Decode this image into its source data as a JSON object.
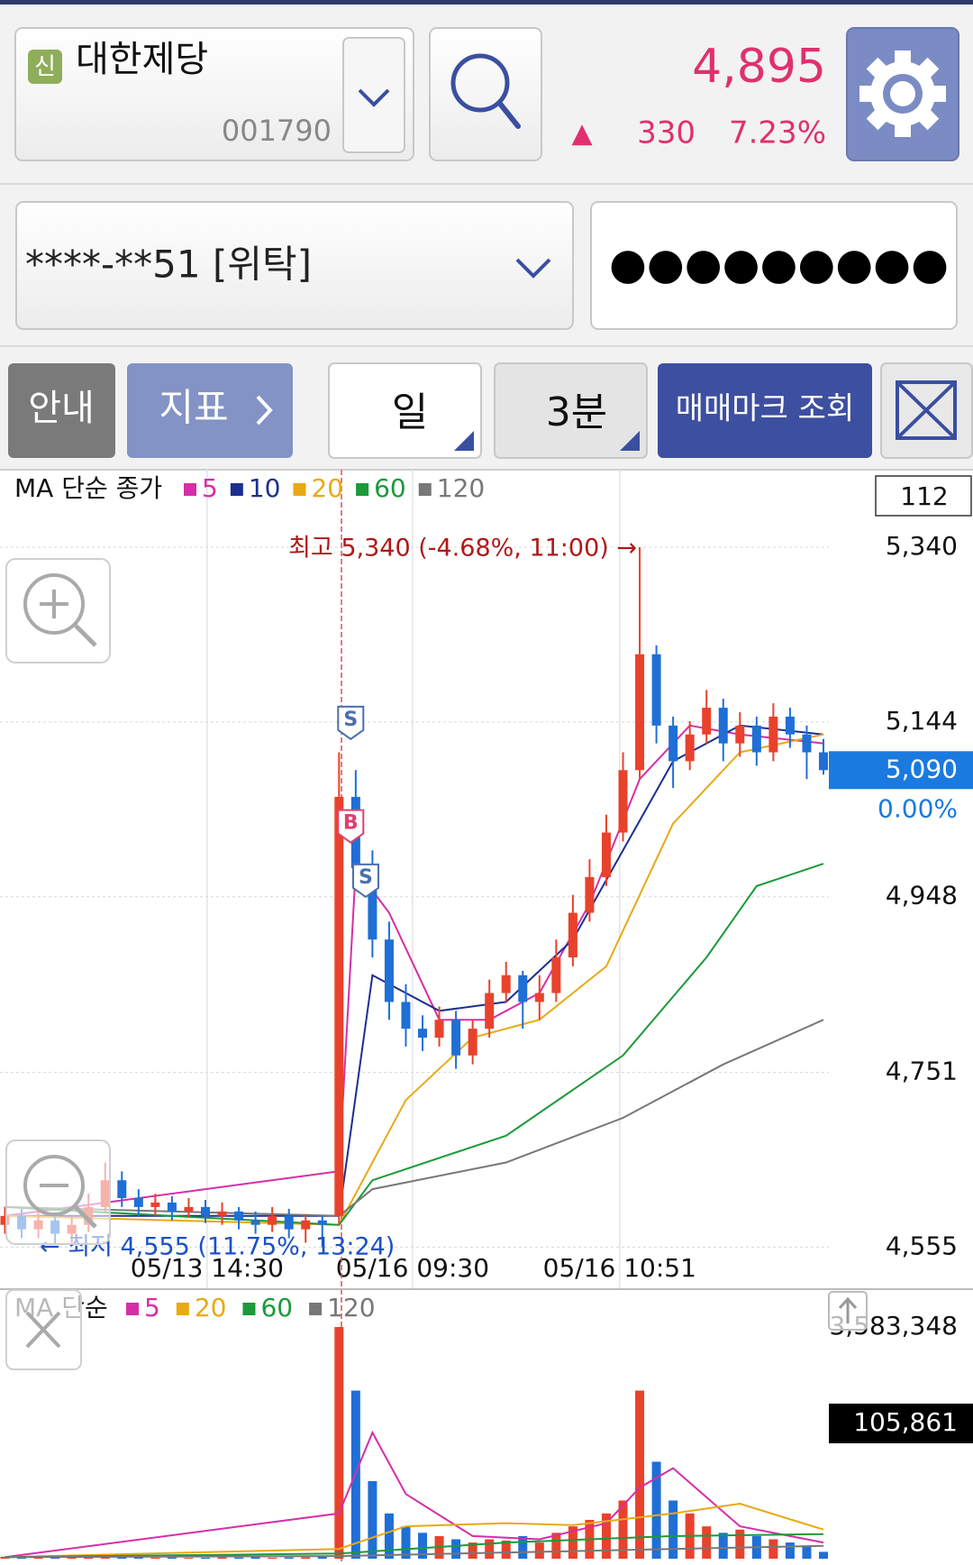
{
  "header": {
    "badge": "신",
    "name": "대한제당",
    "code": "001790",
    "price": "4,895",
    "arrow": "▲",
    "change": "330",
    "change_rate": "7.23%"
  },
  "account": {
    "number": "****-**51 [위탁]",
    "password": "●●●●●●●●●"
  },
  "toolbar": {
    "info": "안내",
    "indicator": "지표",
    "period": "일",
    "interval": "3분",
    "trade_mark": "매매마크 조회"
  },
  "chart_data": [
    {
      "type": "candlestick",
      "legend_title": "MA 단순 종가",
      "count": "112",
      "categories": [
        null,
        null,
        null,
        null,
        null,
        null,
        null,
        null,
        null,
        null,
        null,
        null,
        null,
        null,
        null,
        null,
        null,
        null,
        null,
        null,
        null,
        null,
        null,
        null,
        null,
        null,
        null,
        null,
        null,
        null,
        null,
        null,
        null,
        null,
        null,
        null,
        null,
        null,
        null,
        null,
        null,
        null,
        null,
        null,
        null,
        null,
        null,
        null,
        null,
        null
      ],
      "open": [
        4580,
        4590,
        4575,
        4585,
        4570,
        4580,
        4600,
        4630,
        4610,
        4600,
        4605,
        4595,
        4600,
        4590,
        4595,
        4585,
        4580,
        4590,
        4575,
        4585,
        4590,
        5060,
        4980,
        4900,
        4830,
        4800,
        4790,
        4810,
        4770,
        4800,
        4840,
        4860,
        4830,
        4840,
        4880,
        4930,
        4970,
        5020,
        5090,
        5220,
        5140,
        5100,
        5130,
        5160,
        5120,
        5140,
        5110,
        5150,
        5130,
        5110
      ],
      "high": [
        4600,
        4598,
        4595,
        4592,
        4590,
        4615,
        4650,
        4640,
        4620,
        4615,
        4612,
        4610,
        4608,
        4605,
        4600,
        4595,
        4600,
        4598,
        4592,
        4590,
        5110,
        5090,
        5000,
        4920,
        4850,
        4815,
        4825,
        4820,
        4810,
        4855,
        4875,
        4865,
        4860,
        4900,
        4950,
        4990,
        5040,
        5110,
        5340,
        5230,
        5150,
        5145,
        5180,
        5170,
        5155,
        5150,
        5165,
        5160,
        5140,
        5125
      ],
      "low": [
        4570,
        4565,
        4565,
        4558,
        4560,
        4572,
        4595,
        4600,
        4590,
        4590,
        4585,
        4588,
        4582,
        4580,
        4575,
        4570,
        4572,
        4565,
        4560,
        4555,
        4580,
        4960,
        4880,
        4810,
        4780,
        4775,
        4780,
        4755,
        4760,
        4790,
        4830,
        4800,
        4810,
        4830,
        4870,
        4920,
        4960,
        5010,
        5080,
        5120,
        5070,
        5090,
        5120,
        5100,
        5105,
        5095,
        5100,
        5115,
        5080,
        5085
      ],
      "close": [
        4590,
        4575,
        4585,
        4570,
        4580,
        4600,
        4630,
        4610,
        4600,
        4605,
        4595,
        4600,
        4590,
        4595,
        4585,
        4580,
        4590,
        4575,
        4585,
        4580,
        5060,
        4980,
        4900,
        4830,
        4800,
        4790,
        4810,
        4770,
        4800,
        4840,
        4860,
        4830,
        4840,
        4880,
        4930,
        4970,
        5020,
        5090,
        5220,
        5140,
        5100,
        5130,
        5160,
        5120,
        5140,
        5110,
        5150,
        5130,
        5110,
        5090
      ],
      "up_color": "#e8422c",
      "down_color": "#1f6fd6",
      "series": [
        {
          "name": "5",
          "color": "#d62ea8",
          "x": [
            0,
            20,
            21,
            23,
            26,
            29,
            32,
            35,
            38,
            41,
            44,
            49
          ],
          "values": [
            4590,
            4640,
            4980,
            4930,
            4810,
            4810,
            4840,
            4940,
            5080,
            5140,
            5130,
            5120
          ]
        },
        {
          "name": "10",
          "color": "#1c2f8f",
          "x": [
            0,
            20,
            22,
            26,
            30,
            34,
            37,
            40,
            44,
            49
          ],
          "values": [
            4590,
            4590,
            4860,
            4820,
            4830,
            4900,
            5000,
            5100,
            5140,
            5130
          ]
        },
        {
          "name": "20",
          "color": "#e8a912",
          "x": [
            0,
            20,
            24,
            28,
            32,
            36,
            40,
            44,
            49
          ],
          "values": [
            4590,
            4580,
            4720,
            4790,
            4810,
            4870,
            5030,
            5110,
            5130
          ]
        },
        {
          "name": "60",
          "color": "#1a9a3a",
          "x": [
            0,
            20,
            22,
            30,
            37,
            42,
            45,
            49
          ],
          "values": [
            4600,
            4580,
            4630,
            4680,
            4770,
            4880,
            4960,
            4985
          ]
        },
        {
          "name": "120",
          "color": "#777777",
          "x": [
            0,
            20,
            22,
            30,
            37,
            43,
            49
          ],
          "values": [
            4600,
            4590,
            4620,
            4650,
            4700,
            4760,
            4810
          ]
        }
      ],
      "xlim": [
        0,
        49
      ],
      "xticks": [
        {
          "value": 12.1,
          "label": "05/13 14:30"
        },
        {
          "value": 24.4,
          "label": "05/16 09:30"
        },
        {
          "value": 36.8,
          "label": "05/16 10:51"
        }
      ],
      "ylim": [
        4518,
        5427
      ],
      "yticks": [
        {
          "value": 5340,
          "label": "5,340"
        },
        {
          "value": 5144,
          "label": "5,144"
        },
        {
          "value": 4948,
          "label": "4,948"
        },
        {
          "value": 4751,
          "label": "4,751"
        },
        {
          "value": 4555,
          "label": "4,555"
        }
      ],
      "current": {
        "value": 5090,
        "label": "5,090",
        "change": "0.00%"
      },
      "markers": [
        {
          "label": "S",
          "x": 20.7,
          "y": 5143
        },
        {
          "label": "B",
          "x": 20.7,
          "y": 5027
        },
        {
          "label": "S",
          "x": 21.6,
          "y": 4966
        }
      ],
      "annotations": {
        "high": "최고 5,340 (-4.68%, 11:00) →",
        "low": "← 최저 4,555 (11.75%, 13:24)"
      }
    },
    {
      "type": "bar",
      "legend_title": "MA 단순",
      "values": [
        30000,
        25000,
        40000,
        20000,
        15000,
        20000,
        35000,
        25000,
        20000,
        15000,
        18000,
        12000,
        15000,
        20000,
        18000,
        25000,
        15000,
        20000,
        22000,
        30000,
        3583348,
        2600000,
        1200000,
        700000,
        500000,
        400000,
        350000,
        300000,
        250000,
        300000,
        280000,
        350000,
        250000,
        400000,
        500000,
        600000,
        700000,
        900000,
        2600000,
        1500000,
        900000,
        700000,
        500000,
        400000,
        450000,
        350000,
        300000,
        250000,
        200000,
        105861
      ],
      "series": [
        {
          "name": "5",
          "color": "#d62ea8",
          "x": [
            0,
            20,
            22,
            24,
            28,
            32,
            36,
            38,
            40,
            44,
            49
          ],
          "values": [
            25000,
            700000,
            1950000,
            1000000,
            350000,
            300000,
            550000,
            1100000,
            1400000,
            500000,
            250000
          ]
        },
        {
          "name": "20",
          "color": "#e8a912",
          "x": [
            0,
            20,
            24,
            30,
            34,
            40,
            44,
            49
          ],
          "values": [
            25000,
            150000,
            500000,
            550000,
            520000,
            700000,
            850000,
            450000
          ]
        },
        {
          "name": "60",
          "color": "#1a9a3a",
          "x": [
            0,
            20,
            30,
            40,
            49
          ],
          "values": [
            25000,
            80000,
            250000,
            350000,
            380000
          ]
        },
        {
          "name": "120",
          "color": "#777777",
          "x": [
            0,
            20,
            49
          ],
          "values": [
            25000,
            40000,
            200000
          ]
        }
      ],
      "ylim": [
        0,
        3583348
      ],
      "yticks": [
        {
          "value": 3583348,
          "label": "3,583,348"
        }
      ],
      "current": {
        "value": 105861,
        "label": "105,861"
      }
    }
  ]
}
